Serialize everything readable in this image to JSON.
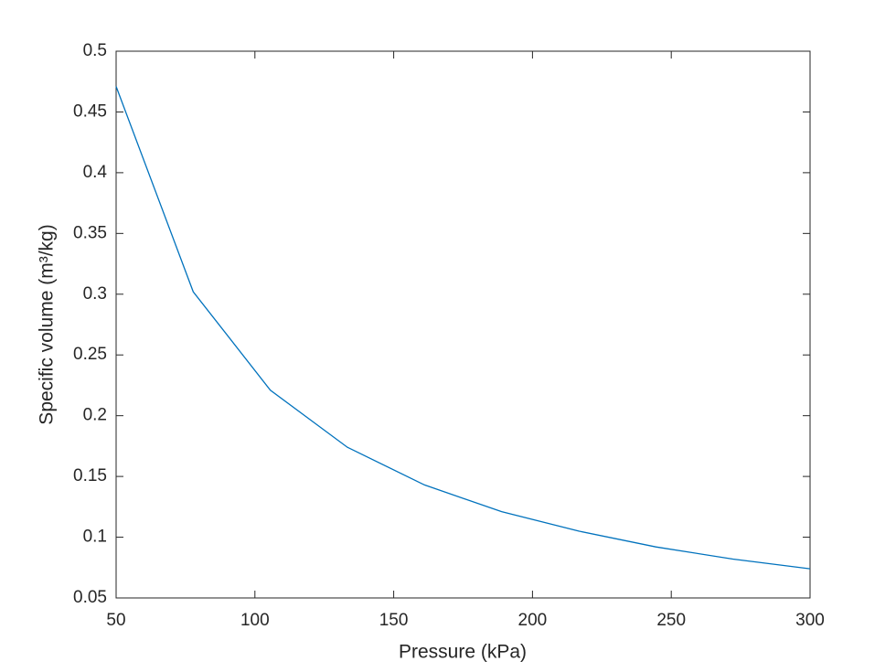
{
  "chart_data": {
    "type": "line",
    "xlabel": "Pressure (kPa)",
    "ylabel": "Specific volume (m³/kg)",
    "x": [
      50,
      77.78,
      105.56,
      133.33,
      161.11,
      188.89,
      216.67,
      244.44,
      272.22,
      300
    ],
    "series": [
      {
        "color": "#0072bd",
        "values": [
          0.471,
          0.302,
          0.221,
          0.174,
          0.143,
          0.121,
          0.105,
          0.092,
          0.082,
          0.074
        ]
      }
    ],
    "xlim": [
      50,
      300
    ],
    "xticks": [
      50,
      100,
      150,
      200,
      250,
      300
    ],
    "ylim": [
      0.05,
      0.5
    ],
    "yticks": [
      0.05,
      0.1,
      0.15,
      0.2,
      0.25,
      0.3,
      0.35,
      0.4,
      0.45,
      0.5
    ],
    "grid": false
  }
}
